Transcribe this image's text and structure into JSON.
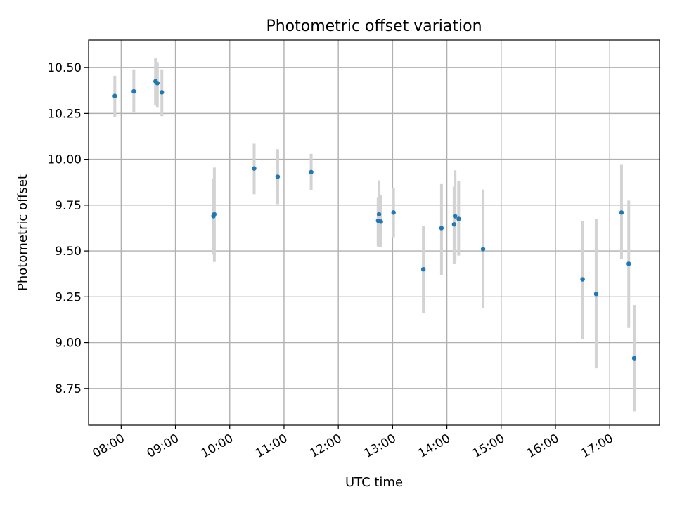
{
  "chart_data": {
    "type": "scatter",
    "title": "Photometric offset variation",
    "xlabel": "UTC time",
    "ylabel": "Photometric offset",
    "x_tick_labels": [
      "08:00",
      "09:00",
      "10:00",
      "11:00",
      "12:00",
      "13:00",
      "14:00",
      "15:00",
      "16:00",
      "17:00"
    ],
    "x_tick_hours": [
      8,
      9,
      10,
      11,
      12,
      13,
      14,
      15,
      16,
      17
    ],
    "y_tick_labels": [
      "8.75",
      "9.00",
      "9.25",
      "9.50",
      "9.75",
      "10.00",
      "10.25",
      "10.50"
    ],
    "y_tick_values": [
      8.75,
      9.0,
      9.25,
      9.5,
      9.75,
      10.0,
      10.25,
      10.5
    ],
    "xlim": [
      "07:24",
      "17:55"
    ],
    "ylim": [
      8.55,
      10.65
    ],
    "grid": true,
    "point_color": "#1f77b4",
    "errorbar_color": "#d3d3d3",
    "points": [
      {
        "time": "07:53",
        "offset": 10.345,
        "err_low": 10.23,
        "err_high": 10.455
      },
      {
        "time": "08:14",
        "offset": 10.37,
        "err_low": 10.255,
        "err_high": 10.49
      },
      {
        "time": "08:38",
        "offset": 10.425,
        "err_low": 10.295,
        "err_high": 10.55
      },
      {
        "time": "08:40",
        "offset": 10.415,
        "err_low": 10.285,
        "err_high": 10.53
      },
      {
        "time": "08:45",
        "offset": 10.365,
        "err_low": 10.235,
        "err_high": 10.49
      },
      {
        "time": "09:42",
        "offset": 9.69,
        "err_low": 9.48,
        "err_high": 9.895
      },
      {
        "time": "09:43",
        "offset": 9.7,
        "err_low": 9.44,
        "err_high": 9.955
      },
      {
        "time": "10:27",
        "offset": 9.95,
        "err_low": 9.81,
        "err_high": 10.085
      },
      {
        "time": "10:53",
        "offset": 9.905,
        "err_low": 9.755,
        "err_high": 10.055
      },
      {
        "time": "11:30",
        "offset": 9.93,
        "err_low": 9.83,
        "err_high": 10.03
      },
      {
        "time": "12:44",
        "offset": 9.665,
        "err_low": 9.525,
        "err_high": 9.79
      },
      {
        "time": "12:45",
        "offset": 9.7,
        "err_low": 9.52,
        "err_high": 9.885
      },
      {
        "time": "12:47",
        "offset": 9.66,
        "err_low": 9.52,
        "err_high": 9.805
      },
      {
        "time": "13:01",
        "offset": 9.71,
        "err_low": 9.575,
        "err_high": 9.845
      },
      {
        "time": "13:34",
        "offset": 9.4,
        "err_low": 9.16,
        "err_high": 9.635
      },
      {
        "time": "13:54",
        "offset": 9.625,
        "err_low": 9.37,
        "err_high": 9.865
      },
      {
        "time": "14:08",
        "offset": 9.645,
        "err_low": 9.43,
        "err_high": 9.85
      },
      {
        "time": "14:09",
        "offset": 9.69,
        "err_low": 9.44,
        "err_high": 9.94
      },
      {
        "time": "14:13",
        "offset": 9.675,
        "err_low": 9.475,
        "err_high": 9.88
      },
      {
        "time": "14:40",
        "offset": 9.51,
        "err_low": 9.19,
        "err_high": 9.835
      },
      {
        "time": "16:30",
        "offset": 9.345,
        "err_low": 9.02,
        "err_high": 9.665
      },
      {
        "time": "16:45",
        "offset": 9.265,
        "err_low": 8.86,
        "err_high": 9.675
      },
      {
        "time": "17:13",
        "offset": 9.71,
        "err_low": 9.455,
        "err_high": 9.97
      },
      {
        "time": "17:21",
        "offset": 9.43,
        "err_low": 9.08,
        "err_high": 9.775
      },
      {
        "time": "17:27",
        "offset": 8.915,
        "err_low": 8.625,
        "err_high": 9.205
      }
    ]
  }
}
